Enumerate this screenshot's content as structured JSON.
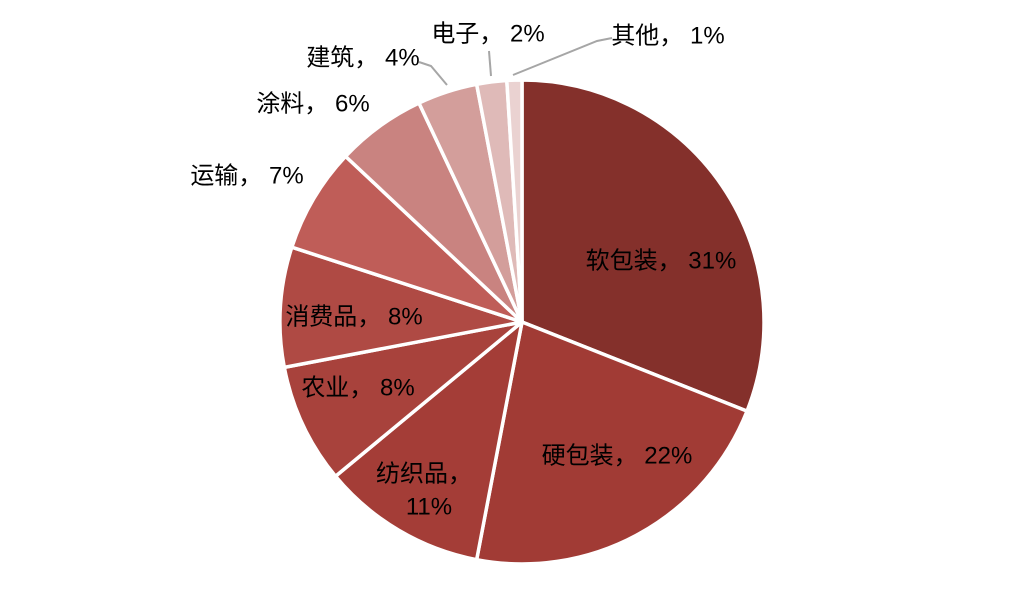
{
  "chart_data": {
    "type": "pie",
    "title": "",
    "unit": "%",
    "direction": "clockwise",
    "start_angle_deg": 0,
    "background": "#FFFFFF",
    "slice_border_color": "#FFFFFF",
    "label_text_color": "#000000",
    "leader_line_color": "#A6A6A6",
    "slices": [
      {
        "label": "软包装",
        "value": 31,
        "display": "软包装， 31%",
        "color": "#84302B",
        "label_placement": "inside",
        "leader_line": false
      },
      {
        "label": "硬包装",
        "value": 22,
        "display": "硬包装， 22%",
        "color": "#A13B35",
        "label_placement": "inside",
        "leader_line": false
      },
      {
        "label": "纺织品",
        "value": 11,
        "display": "纺织品， 11%",
        "display_lines": [
          "纺织品，",
          "11%"
        ],
        "color": "#A43D37",
        "label_placement": "inside",
        "leader_line": false
      },
      {
        "label": "农业",
        "value": 8,
        "display": "农业， 8%",
        "color": "#A8423C",
        "label_placement": "inside",
        "leader_line": false
      },
      {
        "label": "消费品",
        "value": 8,
        "display": "消费品， 8%",
        "color": "#AF4A44",
        "label_placement": "inside",
        "leader_line": false
      },
      {
        "label": "运输",
        "value": 7,
        "display": "运输， 7%",
        "color": "#BF5D58",
        "label_placement": "outside",
        "leader_line": false
      },
      {
        "label": "涂料",
        "value": 6,
        "display": "涂料， 6%",
        "color": "#C98380",
        "label_placement": "outside",
        "leader_line": false
      },
      {
        "label": "建筑",
        "value": 4,
        "display": "建筑， 4%",
        "color": "#D39E9B",
        "label_placement": "outside",
        "leader_line": true
      },
      {
        "label": "电子",
        "value": 2,
        "display": "电子， 2%",
        "color": "#DFBAB8",
        "label_placement": "outside",
        "leader_line": true
      },
      {
        "label": "其他",
        "value": 1,
        "display": "其他， 1%",
        "color": "#EAD2D1",
        "label_placement": "outside",
        "leader_line": true
      }
    ]
  }
}
